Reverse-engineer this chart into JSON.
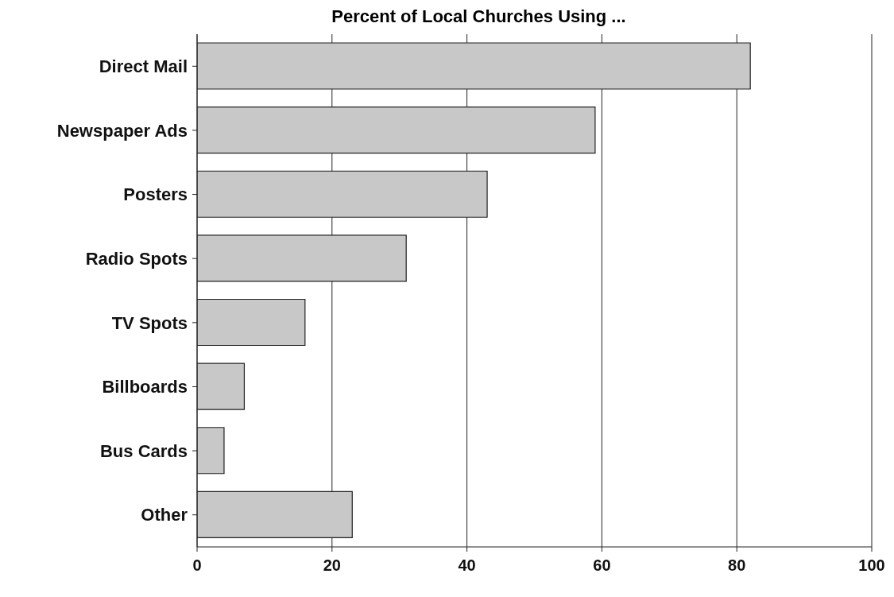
{
  "chart_data": {
    "type": "bar",
    "orientation": "horizontal",
    "title": "Percent of Local Churches Using ...",
    "categories": [
      "Direct Mail",
      "Newspaper Ads",
      "Posters",
      "Radio Spots",
      "TV Spots",
      "Billboards",
      "Bus Cards",
      "Other"
    ],
    "values": [
      82,
      59,
      43,
      31,
      16,
      7,
      4,
      23
    ],
    "color": "#c8c8c8",
    "xlim": [
      0,
      100
    ],
    "xticks": [
      0,
      20,
      40,
      60,
      80,
      100
    ],
    "grid": "x"
  }
}
